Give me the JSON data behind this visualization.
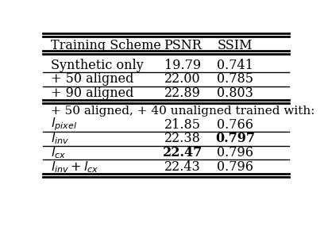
{
  "col_headers": [
    "Training Scheme",
    "PSNR",
    "SSIM"
  ],
  "rows_top": [
    [
      "Synthetic only",
      "19.79",
      "0.741"
    ],
    [
      "+ 50 aligned",
      "22.00",
      "0.785"
    ],
    [
      "+ 90 aligned",
      "22.89",
      "0.803"
    ]
  ],
  "section_label": "+ 50 aligned, + 40 unaligned trained with:",
  "rows_bottom": [
    [
      "$l_{pixel}$",
      "21.85",
      "0.766",
      false,
      false
    ],
    [
      "$l_{inv}$",
      "22.38",
      "0.797",
      false,
      true
    ],
    [
      "$l_{cx}$",
      "22.47",
      "0.796",
      true,
      false
    ],
    [
      "$l_{inv} + l_{cx}$",
      "22.43",
      "0.796",
      false,
      false
    ]
  ],
  "bg_color": "#ffffff",
  "text_color": "#000000",
  "font_size": 11.5
}
